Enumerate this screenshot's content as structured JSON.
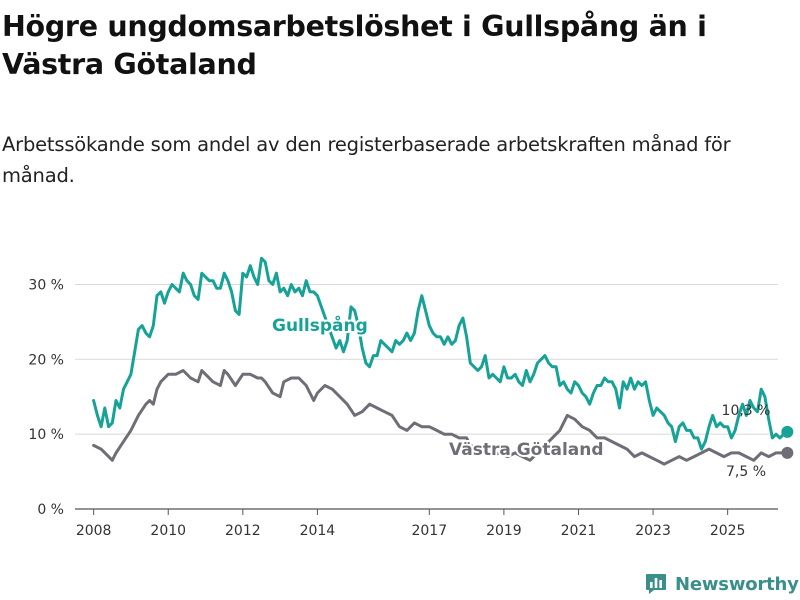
{
  "header": {
    "title": "Högre ungdomsarbetslöshet i Gullspång än i Västra Götaland",
    "subtitle": "Arbetssökande som andel av den registerbaserade arbetskraften månad för månad."
  },
  "brand": {
    "name": "Newsworthy",
    "icon": "bar-chart-icon",
    "color": "#3a8f8a"
  },
  "colors": {
    "gullspang": "#17a297",
    "vastra": "#6e6e76",
    "grid": "#d9d9d9",
    "axis": "#555555"
  },
  "chart_data": {
    "type": "line",
    "title": "Högre ungdomsarbetslöshet i Gullspång än i Västra Götaland",
    "xlabel": "",
    "ylabel": "",
    "xlim": [
      2007.5,
      2026.35
    ],
    "ylim": [
      0,
      33
    ],
    "x_ticks": [
      {
        "value": 2008,
        "label": "2008"
      },
      {
        "value": 2010,
        "label": "2010"
      },
      {
        "value": 2012,
        "label": "2012"
      },
      {
        "value": 2014,
        "label": "2014"
      },
      {
        "value": 2017,
        "label": "2017"
      },
      {
        "value": 2019,
        "label": "2019"
      },
      {
        "value": 2021,
        "label": "2021"
      },
      {
        "value": 2023,
        "label": "2023"
      },
      {
        "value": 2025,
        "label": "2025"
      }
    ],
    "y_ticks": [
      {
        "value": 0,
        "label": "0 %"
      },
      {
        "value": 10,
        "label": "10 %"
      },
      {
        "value": 20,
        "label": "20 %"
      },
      {
        "value": 30,
        "label": "30 %"
      }
    ],
    "grid": true,
    "series": [
      {
        "name": "Gullspång",
        "color": "#17a297",
        "end_value": 10.3,
        "end_label": "10,3 %",
        "points": [
          [
            2008.0,
            14.5
          ],
          [
            2008.1,
            12.5
          ],
          [
            2008.2,
            11.0
          ],
          [
            2008.3,
            13.5
          ],
          [
            2008.4,
            11.0
          ],
          [
            2008.5,
            11.5
          ],
          [
            2008.6,
            14.5
          ],
          [
            2008.7,
            13.5
          ],
          [
            2008.8,
            16.0
          ],
          [
            2008.9,
            17.0
          ],
          [
            2009.0,
            18.0
          ],
          [
            2009.1,
            21.0
          ],
          [
            2009.2,
            24.0
          ],
          [
            2009.3,
            24.5
          ],
          [
            2009.4,
            23.5
          ],
          [
            2009.5,
            23.0
          ],
          [
            2009.6,
            24.5
          ],
          [
            2009.7,
            28.5
          ],
          [
            2009.8,
            29.0
          ],
          [
            2009.9,
            27.5
          ],
          [
            2010.0,
            29.0
          ],
          [
            2010.1,
            30.0
          ],
          [
            2010.2,
            29.5
          ],
          [
            2010.3,
            29.0
          ],
          [
            2010.4,
            31.5
          ],
          [
            2010.5,
            30.5
          ],
          [
            2010.6,
            30.0
          ],
          [
            2010.7,
            28.5
          ],
          [
            2010.8,
            28.0
          ],
          [
            2010.9,
            31.5
          ],
          [
            2011.0,
            31.0
          ],
          [
            2011.1,
            30.5
          ],
          [
            2011.2,
            30.5
          ],
          [
            2011.3,
            29.5
          ],
          [
            2011.4,
            29.5
          ],
          [
            2011.5,
            31.5
          ],
          [
            2011.6,
            30.5
          ],
          [
            2011.7,
            29.0
          ],
          [
            2011.8,
            26.5
          ],
          [
            2011.9,
            26.0
          ],
          [
            2012.0,
            31.5
          ],
          [
            2012.1,
            31.0
          ],
          [
            2012.2,
            32.5
          ],
          [
            2012.3,
            31.0
          ],
          [
            2012.4,
            30.0
          ],
          [
            2012.5,
            33.5
          ],
          [
            2012.6,
            33.0
          ],
          [
            2012.7,
            30.5
          ],
          [
            2012.8,
            30.0
          ],
          [
            2012.9,
            31.5
          ],
          [
            2013.0,
            29.0
          ],
          [
            2013.1,
            29.5
          ],
          [
            2013.2,
            28.5
          ],
          [
            2013.3,
            30.0
          ],
          [
            2013.4,
            29.0
          ],
          [
            2013.5,
            29.5
          ],
          [
            2013.6,
            28.5
          ],
          [
            2013.7,
            30.5
          ],
          [
            2013.8,
            29.0
          ],
          [
            2013.9,
            29.0
          ],
          [
            2014.0,
            28.5
          ],
          [
            2014.5,
            21.5
          ],
          [
            2014.6,
            22.5
          ],
          [
            2014.7,
            21.0
          ],
          [
            2014.8,
            22.5
          ],
          [
            2014.9,
            27.0
          ],
          [
            2015.0,
            26.5
          ],
          [
            2015.1,
            24.5
          ],
          [
            2015.2,
            21.5
          ],
          [
            2015.3,
            19.5
          ],
          [
            2015.4,
            19.0
          ],
          [
            2015.5,
            20.5
          ],
          [
            2015.6,
            20.5
          ],
          [
            2015.7,
            22.5
          ],
          [
            2015.8,
            22.0
          ],
          [
            2015.9,
            21.5
          ],
          [
            2016.0,
            21.0
          ],
          [
            2016.1,
            22.5
          ],
          [
            2016.2,
            22.0
          ],
          [
            2016.3,
            22.5
          ],
          [
            2016.4,
            23.5
          ],
          [
            2016.5,
            22.5
          ],
          [
            2016.6,
            23.5
          ],
          [
            2016.7,
            26.5
          ],
          [
            2016.8,
            28.5
          ],
          [
            2016.9,
            26.5
          ],
          [
            2017.0,
            24.5
          ],
          [
            2017.1,
            23.5
          ],
          [
            2017.2,
            23.0
          ],
          [
            2017.3,
            23.0
          ],
          [
            2017.4,
            22.0
          ],
          [
            2017.5,
            23.0
          ],
          [
            2017.6,
            22.0
          ],
          [
            2017.7,
            22.5
          ],
          [
            2017.8,
            24.5
          ],
          [
            2017.9,
            25.5
          ],
          [
            2018.0,
            23.0
          ],
          [
            2018.1,
            19.5
          ],
          [
            2018.2,
            19.0
          ],
          [
            2018.3,
            18.5
          ],
          [
            2018.4,
            19.0
          ],
          [
            2018.5,
            20.5
          ],
          [
            2018.6,
            17.5
          ],
          [
            2018.7,
            18.0
          ],
          [
            2018.8,
            17.5
          ],
          [
            2018.9,
            17.0
          ],
          [
            2019.0,
            19.0
          ],
          [
            2019.1,
            17.5
          ],
          [
            2019.2,
            17.5
          ],
          [
            2019.3,
            18.0
          ],
          [
            2019.4,
            17.0
          ],
          [
            2019.5,
            16.5
          ],
          [
            2019.6,
            18.5
          ],
          [
            2019.7,
            17.0
          ],
          [
            2019.8,
            18.0
          ],
          [
            2019.9,
            19.5
          ],
          [
            2020.0,
            20.0
          ],
          [
            2020.1,
            20.5
          ],
          [
            2020.2,
            19.5
          ],
          [
            2020.3,
            19.0
          ],
          [
            2020.4,
            19.0
          ],
          [
            2020.5,
            16.5
          ],
          [
            2020.6,
            17.0
          ],
          [
            2020.7,
            16.0
          ],
          [
            2020.8,
            15.5
          ],
          [
            2020.9,
            17.0
          ],
          [
            2021.0,
            16.5
          ],
          [
            2021.1,
            15.5
          ],
          [
            2021.2,
            15.0
          ],
          [
            2021.3,
            14.0
          ],
          [
            2021.4,
            15.5
          ],
          [
            2021.5,
            16.5
          ],
          [
            2021.6,
            16.5
          ],
          [
            2021.7,
            17.5
          ],
          [
            2021.8,
            17.0
          ],
          [
            2021.9,
            17.0
          ],
          [
            2022.0,
            16.0
          ],
          [
            2022.1,
            13.5
          ],
          [
            2022.2,
            17.0
          ],
          [
            2022.3,
            16.0
          ],
          [
            2022.4,
            17.5
          ],
          [
            2022.5,
            16.0
          ],
          [
            2022.6,
            17.0
          ],
          [
            2022.7,
            16.5
          ],
          [
            2022.8,
            17.0
          ],
          [
            2022.9,
            14.5
          ],
          [
            2023.0,
            12.5
          ],
          [
            2023.1,
            13.5
          ],
          [
            2023.2,
            13.0
          ],
          [
            2023.3,
            12.5
          ],
          [
            2023.4,
            11.5
          ],
          [
            2023.5,
            11.0
          ],
          [
            2023.6,
            9.0
          ],
          [
            2023.7,
            11.0
          ],
          [
            2023.8,
            11.5
          ],
          [
            2023.9,
            10.5
          ],
          [
            2024.0,
            10.5
          ],
          [
            2024.1,
            9.5
          ],
          [
            2024.2,
            9.5
          ],
          [
            2024.3,
            8.0
          ],
          [
            2024.4,
            9.0
          ],
          [
            2024.5,
            11.0
          ],
          [
            2024.6,
            12.5
          ],
          [
            2024.7,
            11.0
          ],
          [
            2024.8,
            11.5
          ],
          [
            2024.9,
            11.0
          ],
          [
            2025.0,
            11.0
          ],
          [
            2025.1,
            9.5
          ],
          [
            2025.2,
            10.5
          ],
          [
            2025.3,
            12.5
          ],
          [
            2025.4,
            14.0
          ],
          [
            2025.5,
            12.5
          ],
          [
            2025.6,
            14.5
          ],
          [
            2025.7,
            13.5
          ],
          [
            2025.8,
            13.0
          ],
          [
            2025.9,
            16.0
          ],
          [
            2026.0,
            15.0
          ],
          [
            2026.1,
            12.0
          ],
          [
            2026.2,
            9.5
          ],
          [
            2026.3,
            10.0
          ],
          [
            2026.4,
            9.5
          ],
          [
            2026.5,
            10.0
          ],
          [
            2026.6,
            10.3
          ]
        ]
      },
      {
        "name": "Västra Götaland",
        "color": "#6e6e76",
        "end_value": 7.5,
        "end_label": "7,5 %",
        "points": [
          [
            2008.0,
            8.5
          ],
          [
            2008.2,
            8.0
          ],
          [
            2008.4,
            7.0
          ],
          [
            2008.5,
            6.5
          ],
          [
            2008.6,
            7.5
          ],
          [
            2008.8,
            9.0
          ],
          [
            2009.0,
            10.5
          ],
          [
            2009.2,
            12.5
          ],
          [
            2009.4,
            14.0
          ],
          [
            2009.5,
            14.5
          ],
          [
            2009.6,
            14.0
          ],
          [
            2009.7,
            16.0
          ],
          [
            2009.8,
            17.0
          ],
          [
            2010.0,
            18.0
          ],
          [
            2010.2,
            18.0
          ],
          [
            2010.4,
            18.5
          ],
          [
            2010.6,
            17.5
          ],
          [
            2010.8,
            17.0
          ],
          [
            2010.9,
            18.5
          ],
          [
            2011.0,
            18.0
          ],
          [
            2011.2,
            17.0
          ],
          [
            2011.4,
            16.5
          ],
          [
            2011.5,
            18.5
          ],
          [
            2011.6,
            18.0
          ],
          [
            2011.8,
            16.5
          ],
          [
            2012.0,
            18.0
          ],
          [
            2012.2,
            18.0
          ],
          [
            2012.4,
            17.5
          ],
          [
            2012.5,
            17.5
          ],
          [
            2012.6,
            17.0
          ],
          [
            2012.8,
            15.5
          ],
          [
            2013.0,
            15.0
          ],
          [
            2013.1,
            17.0
          ],
          [
            2013.3,
            17.5
          ],
          [
            2013.5,
            17.5
          ],
          [
            2013.7,
            16.5
          ],
          [
            2013.9,
            14.5
          ],
          [
            2014.0,
            15.5
          ],
          [
            2014.2,
            16.5
          ],
          [
            2014.4,
            16.0
          ],
          [
            2014.6,
            15.0
          ],
          [
            2014.8,
            14.0
          ],
          [
            2015.0,
            12.5
          ],
          [
            2015.2,
            13.0
          ],
          [
            2015.4,
            14.0
          ],
          [
            2015.6,
            13.5
          ],
          [
            2015.8,
            13.0
          ],
          [
            2016.0,
            12.5
          ],
          [
            2016.2,
            11.0
          ],
          [
            2016.4,
            10.5
          ],
          [
            2016.6,
            11.5
          ],
          [
            2016.8,
            11.0
          ],
          [
            2017.0,
            11.0
          ],
          [
            2017.2,
            10.5
          ],
          [
            2017.4,
            10.0
          ],
          [
            2017.6,
            10.0
          ],
          [
            2017.8,
            9.5
          ],
          [
            2018.0,
            9.5
          ],
          [
            2018.1,
            8.5
          ],
          [
            2018.7,
            7.2
          ],
          [
            2018.9,
            7.5
          ],
          [
            2019.1,
            7.0
          ],
          [
            2019.3,
            7.5
          ],
          [
            2019.5,
            7.0
          ],
          [
            2019.7,
            6.5
          ],
          [
            2019.9,
            7.5
          ],
          [
            2020.5,
            10.5
          ],
          [
            2020.7,
            12.5
          ],
          [
            2020.9,
            12.0
          ],
          [
            2021.1,
            11.0
          ],
          [
            2021.3,
            10.5
          ],
          [
            2021.5,
            9.5
          ],
          [
            2021.7,
            9.5
          ],
          [
            2021.9,
            9.0
          ],
          [
            2022.3,
            8.0
          ],
          [
            2022.5,
            7.0
          ],
          [
            2022.7,
            7.5
          ],
          [
            2022.9,
            7.0
          ],
          [
            2023.1,
            6.5
          ],
          [
            2023.3,
            6.0
          ],
          [
            2023.5,
            6.5
          ],
          [
            2023.7,
            7.0
          ],
          [
            2023.9,
            6.5
          ],
          [
            2024.1,
            7.0
          ],
          [
            2024.3,
            7.5
          ],
          [
            2024.5,
            8.0
          ],
          [
            2024.7,
            7.5
          ],
          [
            2024.9,
            7.0
          ],
          [
            2025.1,
            7.5
          ],
          [
            2025.3,
            7.5
          ],
          [
            2025.5,
            7.0
          ],
          [
            2025.7,
            6.5
          ],
          [
            2025.9,
            7.5
          ],
          [
            2026.1,
            7.0
          ],
          [
            2026.3,
            7.5
          ],
          [
            2026.5,
            7.5
          ],
          [
            2026.6,
            7.5
          ]
        ]
      }
    ]
  }
}
